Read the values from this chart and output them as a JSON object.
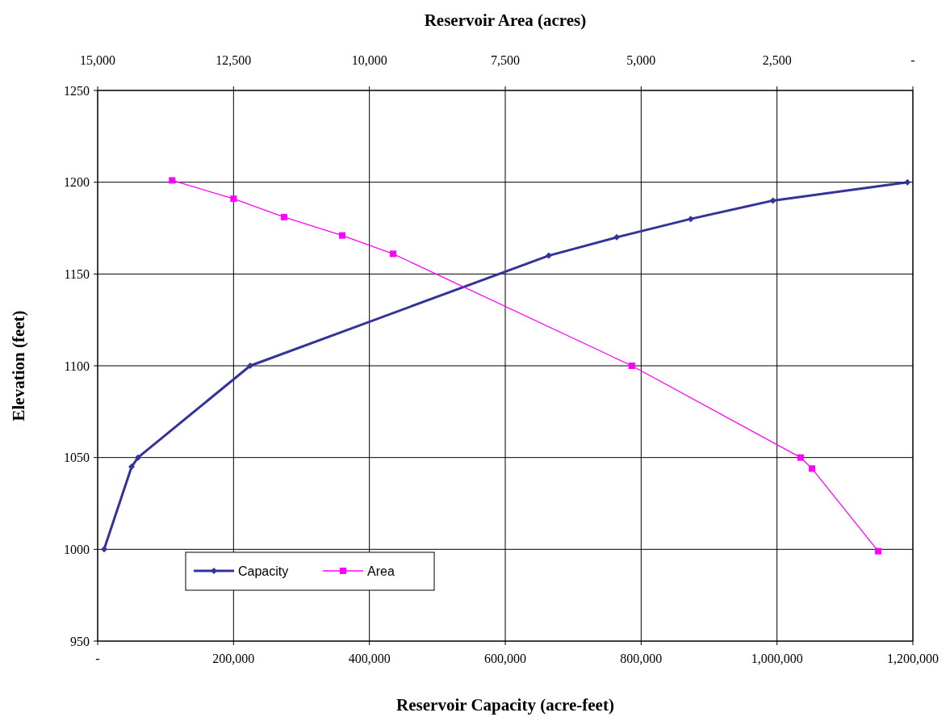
{
  "chart_data": {
    "type": "line",
    "xlabel": "Reservoir Capacity (acre-feet)",
    "ylabel": "Elevation (feet)",
    "x2label": "Reservoir Area (acres)",
    "xlim": [
      0,
      1200000
    ],
    "xticks": [
      {
        "value": 0,
        "label": "-"
      },
      {
        "value": 200000,
        "label": "200,000"
      },
      {
        "value": 400000,
        "label": "400,000"
      },
      {
        "value": 600000,
        "label": "600,000"
      },
      {
        "value": 800000,
        "label": "800,000"
      },
      {
        "value": 1000000,
        "label": "1,000,000"
      },
      {
        "value": 1200000,
        "label": "1,200,000"
      }
    ],
    "x2lim": [
      15000,
      0
    ],
    "x2ticks": [
      {
        "value": 15000,
        "label": "15,000"
      },
      {
        "value": 12500,
        "label": "12,500"
      },
      {
        "value": 10000,
        "label": "10,000"
      },
      {
        "value": 7500,
        "label": "7,500"
      },
      {
        "value": 5000,
        "label": "5,000"
      },
      {
        "value": 2500,
        "label": "2,500"
      },
      {
        "value": 0,
        "label": "-"
      }
    ],
    "ylim": [
      950,
      1250
    ],
    "yticks": [
      950,
      1000,
      1050,
      1100,
      1150,
      1200,
      1250
    ],
    "grid": true,
    "legend": "bottom left",
    "series": [
      {
        "name": "Capacity",
        "color": "#333399",
        "marker": "diamond",
        "x": [
          9500,
          50000,
          59400,
          224500,
          664000,
          764000,
          873000,
          994000,
          1192000
        ],
        "values": [
          1000,
          1045,
          1050,
          1100,
          1160,
          1170,
          1180,
          1190,
          1200
        ]
      },
      {
        "name": "Area",
        "color": "#ff00ff",
        "marker": "square",
        "axis": "x2",
        "x": [
          13630,
          12500,
          11570,
          10500,
          9565,
          5170,
          2065,
          1856,
          638
        ],
        "values": [
          1201,
          1191,
          1181,
          1171,
          1161,
          1100,
          1050,
          1044,
          999
        ]
      }
    ]
  }
}
